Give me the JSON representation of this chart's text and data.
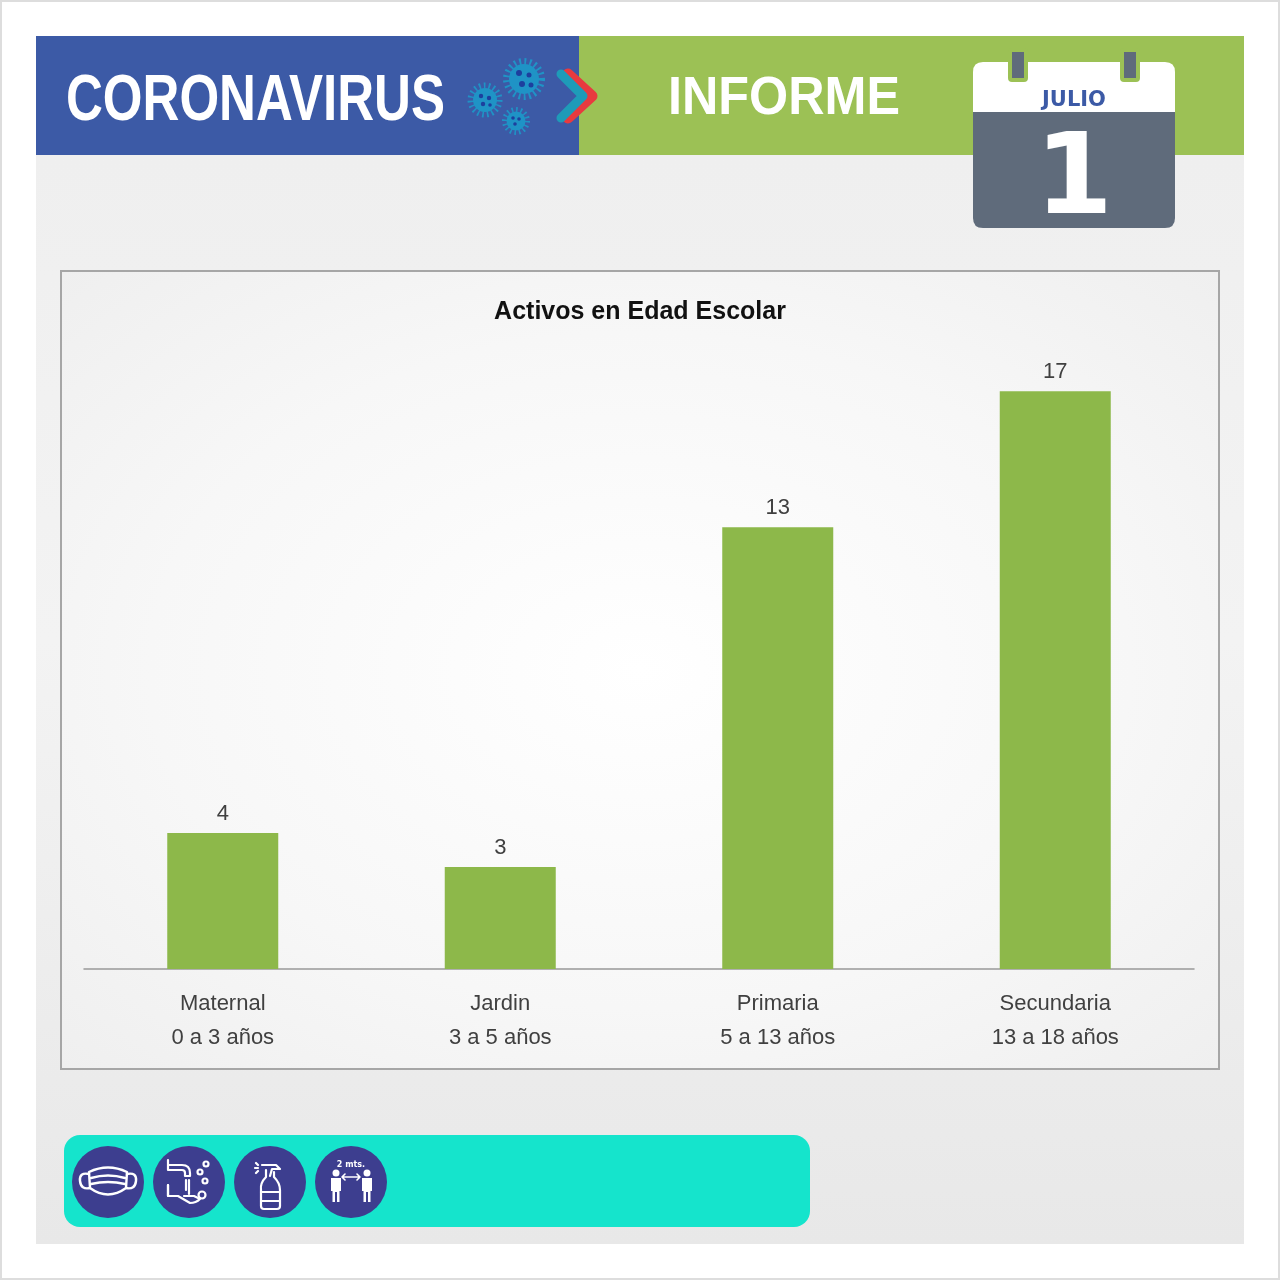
{
  "chart_data": {
    "type": "bar",
    "title": "Activos en Edad Escolar",
    "categories": [
      "Maternal\n0 a 3 años",
      "Jardin\n3 a 5 años",
      "Primaria\n5 a 13 años",
      "Secundaria\n13 a 18 años"
    ],
    "values": [
      4,
      3,
      13,
      17
    ],
    "color": "#8db84a",
    "data_labels": true,
    "annotations": [
      "CORONAVIRUS",
      "INFORME",
      "JULIO",
      "1",
      "2 mts."
    ]
  }
}
